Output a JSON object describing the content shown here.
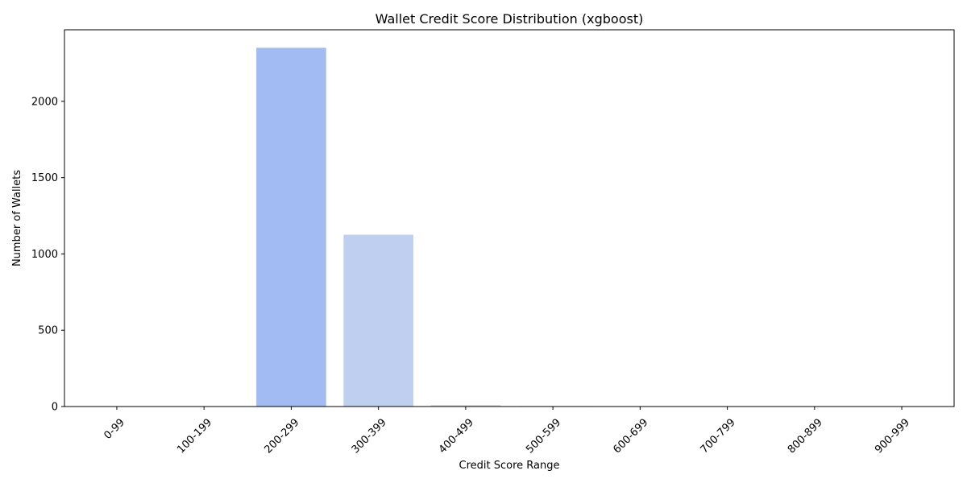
{
  "chart_data": {
    "type": "bar",
    "title": "Wallet Credit Score Distribution (xgboost)",
    "xlabel": "Credit Score Range",
    "ylabel": "Number of Wallets",
    "categories": [
      "0-99",
      "100-199",
      "200-299",
      "300-399",
      "400-499",
      "500-599",
      "600-699",
      "700-799",
      "800-899",
      "900-999"
    ],
    "values": [
      0,
      0,
      2351,
      1126,
      10,
      3,
      0,
      0,
      0,
      0
    ],
    "colors": [
      "#3b4cc0",
      "#6282ea",
      "#a2bbf3",
      "#bfcff0",
      "#dddcdc",
      "#f1ccb8",
      "#f6a385",
      "#e26952",
      "#c0282f",
      "#b40426"
    ],
    "ylim": [
      0,
      2469
    ],
    "yticks": [
      0,
      500,
      1000,
      1500,
      2000
    ],
    "grid": false,
    "legend": "none"
  }
}
